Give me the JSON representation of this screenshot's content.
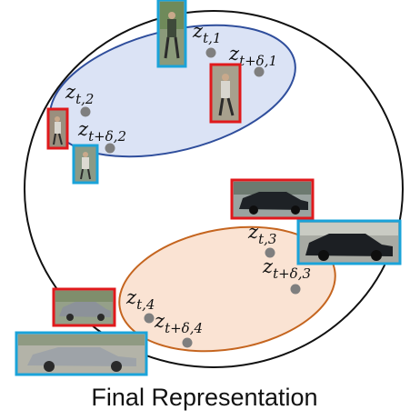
{
  "caption": "Final Representation",
  "colors": {
    "outer_circle": "#111111",
    "pedestrian_cluster_fill": "#dbe3f5",
    "pedestrian_cluster_stroke": "#2f4e9c",
    "vehicle_cluster_fill": "#fae3d3",
    "vehicle_cluster_stroke": "#c5651f",
    "point": "#7f7f7f",
    "thumb_red": "#e0191c",
    "thumb_cyan": "#1aa3d9"
  },
  "clusters": [
    {
      "name": "pedestrian-cluster",
      "points": [
        {
          "base": "z",
          "sub": "t,1"
        },
        {
          "base": "z",
          "sub": "t+δ,1"
        },
        {
          "base": "z",
          "sub": "t,2"
        },
        {
          "base": "z",
          "sub": "t+δ,2"
        }
      ],
      "thumbnails": [
        {
          "name": "pedestrian-thumb-t1",
          "subject": "pedestrian",
          "frame_color": "cyan"
        },
        {
          "name": "pedestrian-thumb-t-delta-1",
          "subject": "pedestrian",
          "frame_color": "red"
        },
        {
          "name": "pedestrian-thumb-t2",
          "subject": "pedestrian",
          "frame_color": "red"
        },
        {
          "name": "pedestrian-thumb-t-delta-2",
          "subject": "pedestrian",
          "frame_color": "cyan"
        }
      ]
    },
    {
      "name": "vehicle-cluster",
      "points": [
        {
          "base": "z",
          "sub": "t,3"
        },
        {
          "base": "z",
          "sub": "t+δ,3"
        },
        {
          "base": "z",
          "sub": "t,4"
        },
        {
          "base": "z",
          "sub": "t+δ,4"
        }
      ],
      "thumbnails": [
        {
          "name": "vehicle-thumb-t3",
          "subject": "car",
          "frame_color": "red"
        },
        {
          "name": "vehicle-thumb-t-delta-3",
          "subject": "car",
          "frame_color": "cyan"
        },
        {
          "name": "vehicle-thumb-t4",
          "subject": "car",
          "frame_color": "red"
        },
        {
          "name": "vehicle-thumb-t-delta-4",
          "subject": "car",
          "frame_color": "cyan"
        }
      ]
    }
  ]
}
